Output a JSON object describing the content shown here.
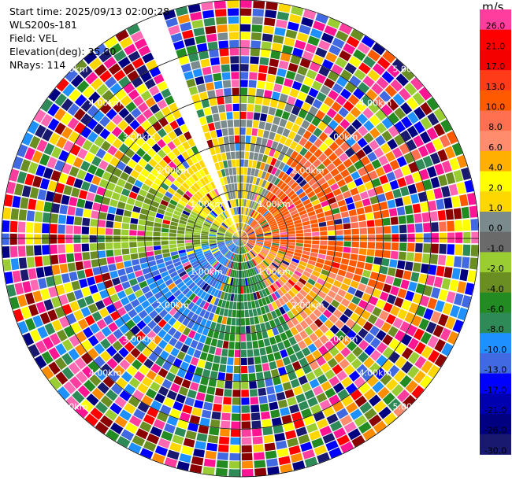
{
  "info": {
    "start_time": "Start time: 2025/09/13 02:00:28",
    "instrument": "WLS200s-181",
    "field": "Field: VEL",
    "elevation": "Elevation(deg): 35.00",
    "nrays": "NRays: 114"
  },
  "chart_data": {
    "type": "heatmap",
    "projection": "polar PPI (plan position indicator)",
    "field": "VEL",
    "units": "m/s",
    "range_rings_km": [
      1,
      2,
      3,
      4,
      5
    ],
    "ring_labels": [
      "1.00km",
      "2.00km",
      "3.00km",
      "4.00km",
      "5.00km"
    ],
    "max_range_km": 5.0,
    "nrays": 114,
    "elevation_deg": 35.0,
    "missing_sector_deg": [
      -25,
      -20
    ],
    "colorbar": {
      "title": "m/s",
      "ticks": [
        "26.0",
        "21.0",
        "17.0",
        "13.0",
        "10.0",
        "8.0",
        "6.0",
        "4.0",
        "2.0",
        "1.0",
        "0.0",
        "-1.0",
        "-2.0",
        "-4.0",
        "-6.0",
        "-8.0",
        "-10.0",
        "-13.0",
        "-17.0",
        "-21.0",
        "-26.0",
        "-30.0"
      ],
      "colors": [
        "#ff3d9e",
        "#ff0000",
        "#f50000",
        "#ff3b1a",
        "#ff5a00",
        "#ff7050",
        "#ff8c6c",
        "#ffb000",
        "#ffff00",
        "#ffd700",
        "#7b8a8c",
        "#6a6a6a",
        "#9acd32",
        "#6b8e23",
        "#228b22",
        "#2e8b57",
        "#1e90ff",
        "#4169e1",
        "#0000ff",
        "#0000b0",
        "#000080",
        "#191970"
      ]
    }
  }
}
